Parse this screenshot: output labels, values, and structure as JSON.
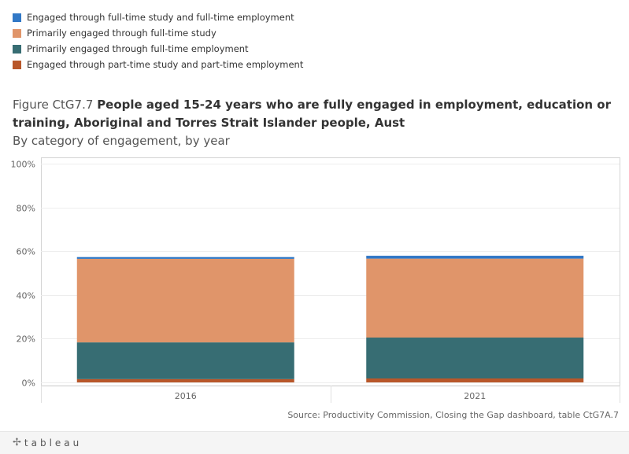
{
  "legend": {
    "items": [
      {
        "label": "Engaged through full-time study and full-time employment",
        "color": "#3178c6"
      },
      {
        "label": "Primarily engaged through full-time study",
        "color": "#e0956a"
      },
      {
        "label": "Primarily engaged through full-time employment",
        "color": "#376d73"
      },
      {
        "label": "Engaged through part-time study and part-time employment",
        "color": "#b8572a"
      }
    ]
  },
  "title": {
    "prefix": "Figure CtG7.7",
    "main": "People aged 15-24 years who are fully engaged in employment, education or training, Aboriginal and Torres Strait Islander people, Aust",
    "subtitle": "By category of engagement, by year"
  },
  "source": "Source: Productivity Commission, Closing the Gap dashboard, table CtG7A.7",
  "footer": {
    "logo_text": "tableau"
  },
  "chart_data": {
    "type": "bar",
    "stacked": true,
    "categories": [
      "2016",
      "2021"
    ],
    "series": [
      {
        "name": "Engaged through part-time study and part-time employment",
        "color": "#b8572a",
        "values": [
          1.5,
          1.8
        ]
      },
      {
        "name": "Primarily engaged through full-time employment",
        "color": "#376d73",
        "values": [
          16.8,
          18.7
        ]
      },
      {
        "name": "Primarily engaged through full-time study",
        "color": "#e0956a",
        "values": [
          38.2,
          36.1
        ]
      },
      {
        "name": "Engaged through full-time study and full-time employment",
        "color": "#3178c6",
        "values": [
          0.8,
          1.3
        ]
      }
    ],
    "yticks": [
      0,
      20,
      40,
      60,
      80,
      100
    ],
    "ytick_labels": [
      "0%",
      "20%",
      "40%",
      "60%",
      "80%",
      "100%"
    ],
    "ylim": [
      0,
      100
    ],
    "grid": true,
    "legend_position": "top-left"
  }
}
